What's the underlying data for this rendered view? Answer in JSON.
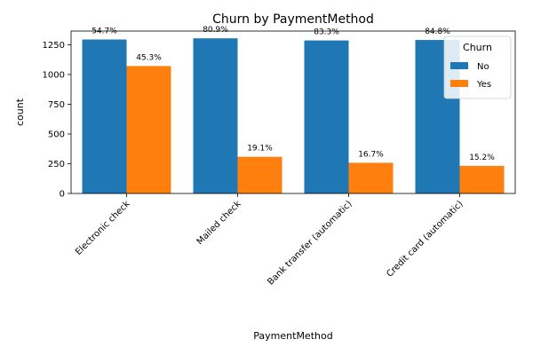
{
  "chart_data": {
    "type": "bar",
    "title": "Churn by PaymentMethod",
    "xlabel": "PaymentMethod",
    "ylabel": "count",
    "categories": [
      "Electronic check",
      "Mailed check",
      "Bank transfer (automatic)",
      "Credit card (automatic)"
    ],
    "series": [
      {
        "name": "No",
        "color": "#1f77b4",
        "values": [
          1294,
          1304,
          1286,
          1290
        ],
        "labels": [
          "54.7%",
          "80.9%",
          "83.3%",
          "84.8%"
        ]
      },
      {
        "name": "Yes",
        "color": "#ff7f0e",
        "values": [
          1071,
          308,
          258,
          232
        ],
        "labels": [
          "45.3%",
          "19.1%",
          "16.7%",
          "15.2%"
        ]
      }
    ],
    "ylim": [
      0,
      1365
    ],
    "yticks": [
      0,
      250,
      500,
      750,
      1000,
      1250
    ],
    "grid": false,
    "legend": {
      "title": "Churn",
      "placement": "top-right"
    }
  }
}
